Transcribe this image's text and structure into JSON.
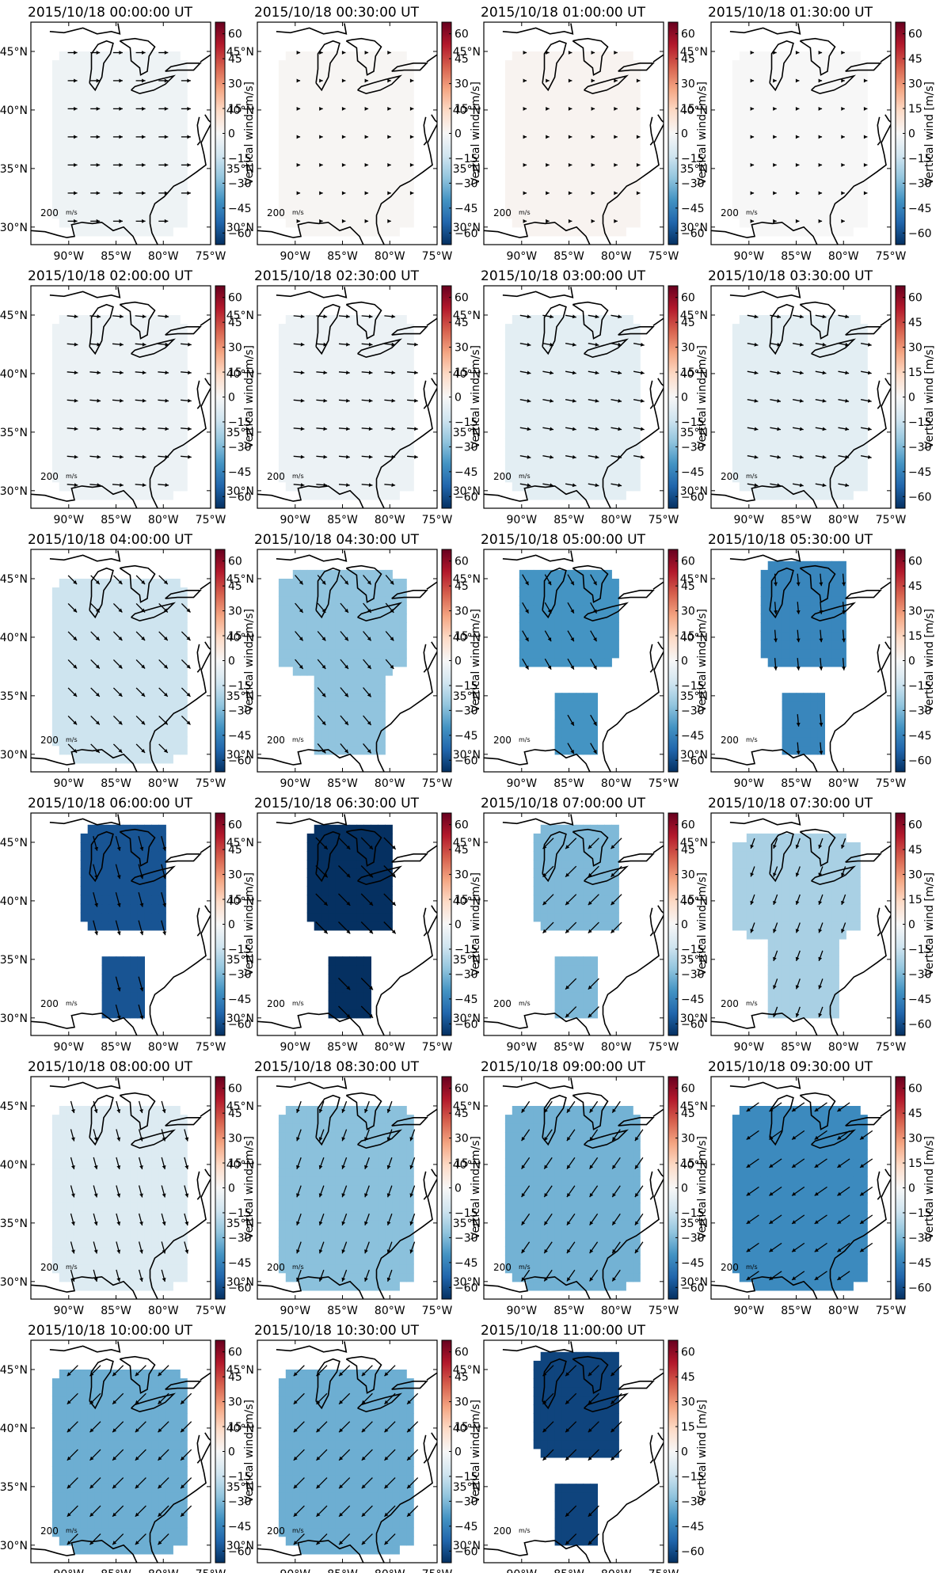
{
  "figure": {
    "colorbar_label": "Vertical wind [m/s]",
    "colorbar_ticks": [
      60,
      45,
      30,
      15,
      0,
      -15,
      -30,
      -45,
      -60
    ],
    "colorbar_range": [
      -67,
      67
    ],
    "colormap": [
      "#053061",
      "#2166ac",
      "#4393c3",
      "#92c5de",
      "#d1e5f0",
      "#f7f7f7",
      "#fddbc7",
      "#f4a582",
      "#d6604d",
      "#b2182b",
      "#67001f"
    ],
    "lat_ticks": [
      "45°N",
      "40°N",
      "35°N",
      "30°N"
    ],
    "lat_values": [
      45,
      40,
      35,
      30
    ],
    "lon_ticks": [
      "90°W",
      "85°W",
      "80°W",
      "75°W"
    ],
    "lon_values": [
      -90,
      -85,
      -80,
      -75
    ],
    "lon_range": [
      -94,
      -75
    ],
    "lat_range": [
      28.5,
      47.5
    ],
    "scale_label": "200",
    "scale_unit": "m/s"
  },
  "chart_data": {
    "type": "heatmap",
    "description_unit": "m/s",
    "panels": [
      {
        "title": "2015/10/18 00:00:00 UT",
        "vertical_wind": -3,
        "wind_dir_deg": 90,
        "wind_len": 0.5,
        "region": "wide"
      },
      {
        "title": "2015/10/18 00:30:00 UT",
        "vertical_wind": 1,
        "wind_dir_deg": 90,
        "wind_len": 0,
        "region": "wide"
      },
      {
        "title": "2015/10/18 01:00:00 UT",
        "vertical_wind": 2,
        "wind_dir_deg": 90,
        "wind_len": 0,
        "region": "wide"
      },
      {
        "title": "2015/10/18 01:30:00 UT",
        "vertical_wind": 0,
        "wind_dir_deg": 90,
        "wind_len": 0,
        "region": "wide"
      },
      {
        "title": "2015/10/18 02:00:00 UT",
        "vertical_wind": -4,
        "wind_dir_deg": 95,
        "wind_len": 0.6,
        "region": "wide"
      },
      {
        "title": "2015/10/18 02:30:00 UT",
        "vertical_wind": -4,
        "wind_dir_deg": 95,
        "wind_len": 0.6,
        "region": "wide"
      },
      {
        "title": "2015/10/18 03:00:00 UT",
        "vertical_wind": -7,
        "wind_dir_deg": 100,
        "wind_len": 0.6,
        "region": "wide"
      },
      {
        "title": "2015/10/18 03:30:00 UT",
        "vertical_wind": -7,
        "wind_dir_deg": 100,
        "wind_len": 0.6,
        "region": "wide"
      },
      {
        "title": "2015/10/18 04:00:00 UT",
        "vertical_wind": -14,
        "wind_dir_deg": 135,
        "wind_len": 0.7,
        "region": "wide"
      },
      {
        "title": "2015/10/18 04:30:00 UT",
        "vertical_wind": -27,
        "wind_dir_deg": 140,
        "wind_len": 0.7,
        "region": "split_wide"
      },
      {
        "title": "2015/10/18 05:00:00 UT",
        "vertical_wind": -40,
        "wind_dir_deg": 150,
        "wind_len": 0.7,
        "region": "split_mid"
      },
      {
        "title": "2015/10/18 05:30:00 UT",
        "vertical_wind": -44,
        "wind_dir_deg": 175,
        "wind_len": 0.7,
        "region": "split_small"
      },
      {
        "title": "2015/10/18 06:00:00 UT",
        "vertical_wind": -58,
        "wind_dir_deg": 165,
        "wind_len": 0.9,
        "region": "split_small"
      },
      {
        "title": "2015/10/18 06:30:00 UT",
        "vertical_wind": -67,
        "wind_dir_deg": 135,
        "wind_len": 1.0,
        "region": "split_small"
      },
      {
        "title": "2015/10/18 07:00:00 UT",
        "vertical_wind": -30,
        "wind_dir_deg": 225,
        "wind_len": 0.9,
        "region": "split_small"
      },
      {
        "title": "2015/10/18 07:30:00 UT",
        "vertical_wind": -22,
        "wind_dir_deg": 200,
        "wind_len": 0.6,
        "region": "split_wide"
      },
      {
        "title": "2015/10/18 08:00:00 UT",
        "vertical_wind": -9,
        "wind_dir_deg": 165,
        "wind_len": 0.7,
        "region": "wide"
      },
      {
        "title": "2015/10/18 08:30:00 UT",
        "vertical_wind": -28,
        "wind_dir_deg": 200,
        "wind_len": 0.7,
        "region": "wide"
      },
      {
        "title": "2015/10/18 09:00:00 UT",
        "vertical_wind": -32,
        "wind_dir_deg": 215,
        "wind_len": 0.8,
        "region": "wide"
      },
      {
        "title": "2015/10/18 09:30:00 UT",
        "vertical_wind": -43,
        "wind_dir_deg": 235,
        "wind_len": 0.9,
        "region": "wide"
      },
      {
        "title": "2015/10/18 10:00:00 UT",
        "vertical_wind": -33,
        "wind_dir_deg": 225,
        "wind_len": 0.9,
        "region": "wide"
      },
      {
        "title": "2015/10/18 10:30:00 UT",
        "vertical_wind": -33,
        "wind_dir_deg": 225,
        "wind_len": 0.9,
        "region": "wide"
      },
      {
        "title": "2015/10/18 11:00:00 UT",
        "vertical_wind": -62,
        "wind_dir_deg": 225,
        "wind_len": 0.9,
        "region": "split_small"
      }
    ]
  }
}
